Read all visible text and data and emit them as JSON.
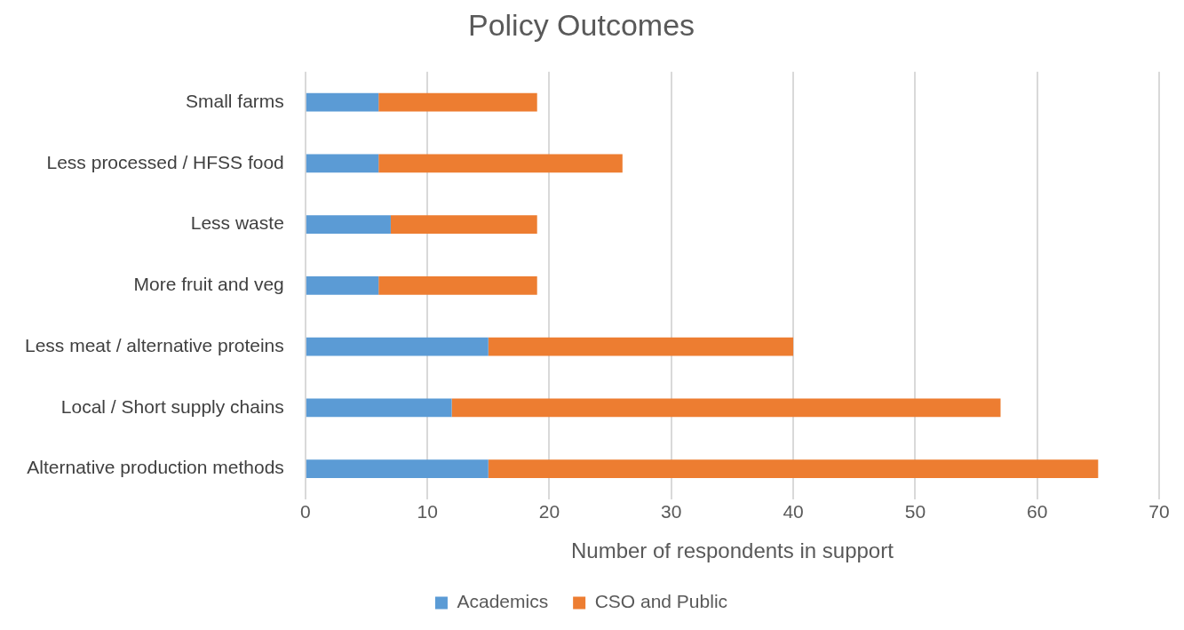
{
  "chart_data": {
    "type": "bar",
    "title": "Policy Outcomes",
    "xlabel": "Number of respondents in support",
    "categories": [
      "Small farms",
      "Less processed / HFSS food",
      "Less waste",
      "More fruit and veg",
      "Less meat / alternative proteins",
      "Local / Short supply chains",
      "Alternative production methods"
    ],
    "series": [
      {
        "name": "Academics",
        "color": "#5b9bd5",
        "values": [
          6,
          6,
          7,
          6,
          15,
          12,
          15
        ]
      },
      {
        "name": "CSO and Public",
        "color": "#ed7d31",
        "values": [
          13,
          20,
          12,
          13,
          25,
          45,
          50
        ]
      }
    ],
    "orientation": "horizontal",
    "stacked": true,
    "xlim": [
      0,
      70
    ],
    "xticks": [
      0,
      10,
      20,
      30,
      40,
      50,
      60,
      70
    ],
    "grid": "x",
    "legend": "bottom"
  }
}
